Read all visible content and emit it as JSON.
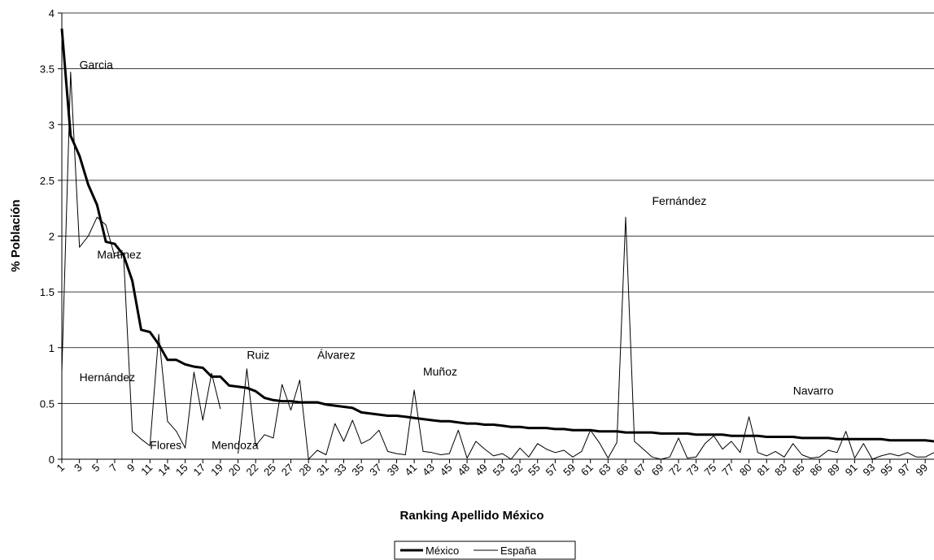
{
  "chart_data": {
    "type": "line",
    "xlabel": "Ranking Apellido México",
    "ylabel": "% Población",
    "ylim": [
      0,
      4
    ],
    "yticks": [
      0,
      0.5,
      1,
      1.5,
      2,
      2.5,
      3,
      3.5,
      4
    ],
    "ytick_labels": [
      "0",
      "0.5",
      "1",
      "1.5",
      "2",
      "2.5",
      "3",
      "3.5",
      "4"
    ],
    "grid": true,
    "legend_position": "bottom-center",
    "x_tick_labels": [
      "1",
      "3",
      "5",
      "7",
      "9",
      "11",
      "14",
      "15",
      "17",
      "19",
      "20",
      "22",
      "25",
      "27",
      "28",
      "31",
      "33",
      "35",
      "37",
      "39",
      "41",
      "43",
      "45",
      "48",
      "49",
      "53",
      "52",
      "55",
      "57",
      "59",
      "61",
      "63",
      "66",
      "67",
      "69",
      "72",
      "73",
      "75",
      "77",
      "80",
      "81",
      "83",
      "85",
      "86",
      "89",
      "91",
      "93",
      "95",
      "97",
      "99"
    ],
    "series": [
      {
        "name": "México",
        "color": "#000000",
        "line_width": 3,
        "values": [
          3.86,
          2.9,
          2.72,
          2.46,
          2.28,
          1.95,
          1.93,
          1.83,
          1.6,
          1.16,
          1.14,
          1.03,
          0.89,
          0.89,
          0.85,
          0.83,
          0.82,
          0.74,
          0.74,
          0.66,
          0.65,
          0.64,
          0.61,
          0.55,
          0.53,
          0.52,
          0.52,
          0.51,
          0.51,
          0.51,
          0.49,
          0.48,
          0.47,
          0.46,
          0.42,
          0.41,
          0.4,
          0.39,
          0.39,
          0.38,
          0.37,
          0.36,
          0.35,
          0.34,
          0.34,
          0.33,
          0.32,
          0.32,
          0.31,
          0.31,
          0.3,
          0.29,
          0.29,
          0.28,
          0.28,
          0.28,
          0.27,
          0.27,
          0.26,
          0.26,
          0.26,
          0.25,
          0.25,
          0.25,
          0.24,
          0.24,
          0.24,
          0.24,
          0.23,
          0.23,
          0.23,
          0.23,
          0.22,
          0.22,
          0.22,
          0.22,
          0.21,
          0.21,
          0.21,
          0.21,
          0.2,
          0.2,
          0.2,
          0.2,
          0.19,
          0.19,
          0.19,
          0.19,
          0.18,
          0.18,
          0.18,
          0.18,
          0.18,
          0.18,
          0.17,
          0.17,
          0.17,
          0.17,
          0.17,
          0.16
        ]
      },
      {
        "name": "España",
        "color": "#000000",
        "line_width": 1,
        "values": [
          0.78,
          3.47,
          1.9,
          2.0,
          2.17,
          2.1,
          1.82,
          1.84,
          0.25,
          0.18,
          0.12,
          1.12,
          0.34,
          0.25,
          0.1,
          0.78,
          0.35,
          0.77,
          0.45,
          null,
          0.05,
          0.81,
          0.12,
          0.22,
          0.19,
          0.67,
          0.44,
          0.71,
          0.0,
          0.08,
          0.04,
          0.32,
          0.16,
          0.35,
          0.14,
          0.18,
          0.26,
          0.07,
          0.05,
          0.04,
          0.62,
          0.07,
          0.06,
          0.04,
          0.05,
          0.26,
          0.01,
          0.16,
          0.09,
          0.03,
          0.05,
          0.0,
          0.1,
          0.02,
          0.14,
          0.09,
          0.06,
          0.08,
          0.02,
          0.07,
          0.26,
          0.15,
          0.01,
          0.15,
          2.17,
          0.16,
          0.09,
          0.02,
          0.0,
          0.02,
          0.19,
          0.01,
          0.02,
          0.14,
          0.21,
          0.09,
          0.16,
          0.06,
          0.38,
          0.06,
          0.03,
          0.07,
          0.02,
          0.14,
          0.04,
          0.01,
          0.02,
          0.08,
          0.06,
          0.25,
          0.01,
          0.14,
          0.0,
          0.03,
          0.05,
          0.03,
          0.06,
          0.02,
          0.02,
          0.06
        ]
      }
    ],
    "annotations": [
      {
        "text": "Garcia",
        "x": 3,
        "y": 3.5
      },
      {
        "text": "Martínez",
        "x": 5,
        "y": 1.8
      },
      {
        "text": "Hernández",
        "x": 3,
        "y": 0.7
      },
      {
        "text": "Flores",
        "x": 11,
        "y": 0.09
      },
      {
        "text": "Mendoza",
        "x": 18,
        "y": 0.09
      },
      {
        "text": "Ruiz",
        "x": 22,
        "y": 0.9
      },
      {
        "text": "Álvarez",
        "x": 30,
        "y": 0.9
      },
      {
        "text": "Muñoz",
        "x": 42,
        "y": 0.75
      },
      {
        "text": "Fernández",
        "x": 68,
        "y": 2.28
      },
      {
        "text": "Navarro",
        "x": 84,
        "y": 0.58
      }
    ]
  }
}
